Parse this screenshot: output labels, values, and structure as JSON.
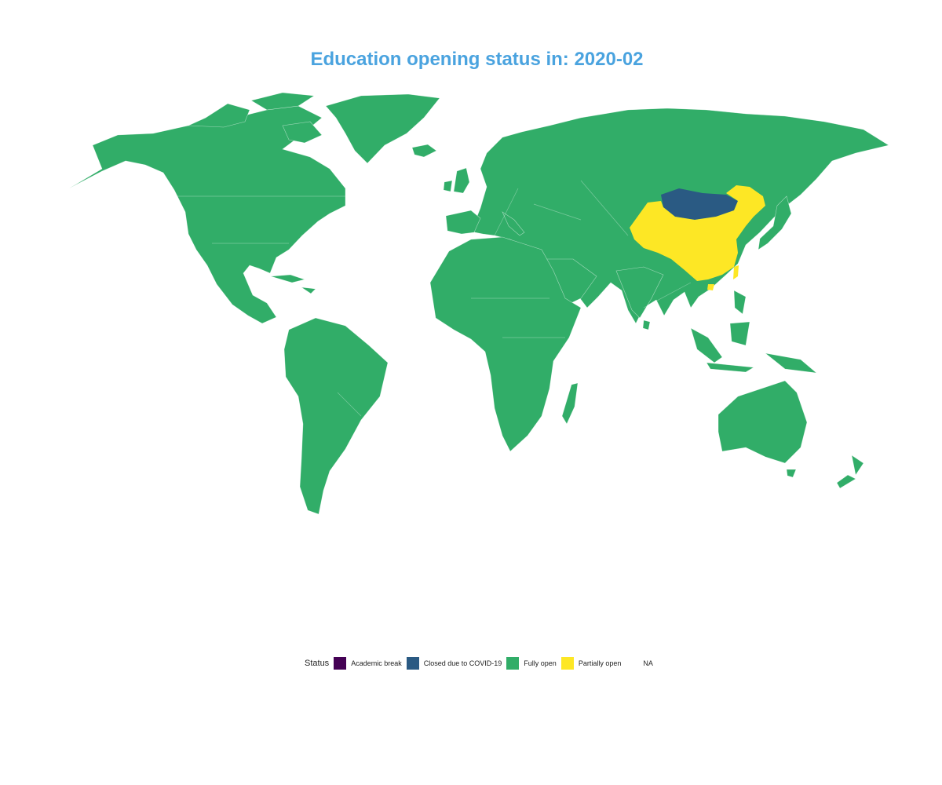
{
  "map": {
    "title": "Education opening status in: 2020-02",
    "colors": {
      "academic_break": "#440154",
      "closed": "#2a5a83",
      "fully_open": "#31ad68",
      "partially_open": "#fde725",
      "title": "#4aa3df"
    },
    "regions": [
      {
        "name": "Mongolia",
        "status": "Closed due to COVID-19"
      },
      {
        "name": "China",
        "status": "Partially open"
      },
      {
        "name": "Rest of world",
        "status": "Fully open"
      }
    ]
  },
  "legend": {
    "title": "Status",
    "items": [
      {
        "label": "Academic break",
        "color": "#440154"
      },
      {
        "label": "Closed due to COVID-19",
        "color": "#2a5a83"
      },
      {
        "label": "Fully open",
        "color": "#31ad68"
      },
      {
        "label": "Partially open",
        "color": "#fde725"
      },
      {
        "label": "NA",
        "color": ""
      }
    ]
  }
}
